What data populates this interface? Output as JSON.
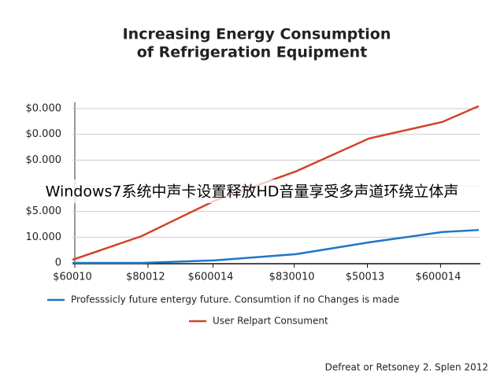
{
  "chart_data": {
    "type": "line",
    "title": [
      "Increasing Energy Consumption",
      "of Refrigeration Equipment"
    ],
    "x": [
      0,
      17,
      35,
      55,
      73,
      91,
      100
    ],
    "xlim": [
      0,
      100
    ],
    "xticks": [
      {
        "value": 0,
        "label": "$60010"
      },
      {
        "value": 18,
        "label": "$80012"
      },
      {
        "value": 34,
        "label": "$600014"
      },
      {
        "value": 54,
        "label": "$830010"
      },
      {
        "value": 72,
        "label": "$50013"
      },
      {
        "value": 90,
        "label": "$600014"
      }
    ],
    "ylim": [
      0,
      31000
    ],
    "yticks": [
      0,
      {
        "value": 5000,
        "label": "10.000"
      },
      {
        "value": 10000,
        "label": "$5.000"
      },
      {
        "value": 15000,
        "label": null
      },
      {
        "value": 20000,
        "label": "$0.000"
      },
      {
        "value": 25000,
        "label": "$0.000"
      },
      {
        "value": 30000,
        "label": "$0.000"
      }
    ],
    "grid": true,
    "series": [
      {
        "name": "Professsicly future entergy future. Consumtion if no Changes is made",
        "color": "#1f77c4",
        "values": [
          0,
          0,
          500,
          1700,
          4000,
          6000,
          6400
        ]
      },
      {
        "name": "User Relpart Consument",
        "color": "#d4412a",
        "values": [
          600,
          5200,
          12100,
          17800,
          24200,
          27400,
          30500
        ]
      }
    ],
    "source": "Defreat or Retsoney 2. Splen 2012",
    "watermark": "Windows7系统中声卡设置释放HD音量享受多声道环绕立体声"
  }
}
